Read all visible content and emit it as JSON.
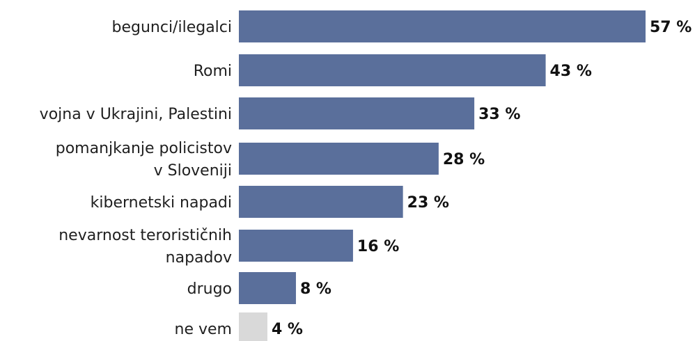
{
  "chart_data": {
    "type": "bar",
    "orientation": "horizontal",
    "categories": [
      "begunci/ilegalci",
      "Romi",
      "vojna v Ukrajini, Palestini",
      "pomanjkanje policistov v Sloveniji",
      "kibernetski napadi",
      "nevarnost terorističnih napadov",
      "drugo",
      "ne vem"
    ],
    "category_lines": [
      [
        "begunci/ilegalci"
      ],
      [
        "Romi"
      ],
      [
        "vojna v Ukrajini, Palestini"
      ],
      [
        "pomanjkanje policistov",
        "v Sloveniji"
      ],
      [
        "kibernetski napadi"
      ],
      [
        "nevarnost terorističnih",
        "napadov"
      ],
      [
        "drugo"
      ],
      [
        "ne vem"
      ]
    ],
    "values": [
      57,
      43,
      33,
      28,
      23,
      16,
      8,
      4
    ],
    "value_labels": [
      "57 %",
      "43 %",
      "33 %",
      "28 %",
      "23 %",
      "16 %",
      "8 %",
      "4 %"
    ],
    "colors": [
      "#5a6f9b",
      "#5a6f9b",
      "#5a6f9b",
      "#5a6f9b",
      "#5a6f9b",
      "#5a6f9b",
      "#5a6f9b",
      "#d9d9d9"
    ],
    "xlim": [
      0,
      57
    ],
    "grid": false,
    "legend": "none"
  }
}
